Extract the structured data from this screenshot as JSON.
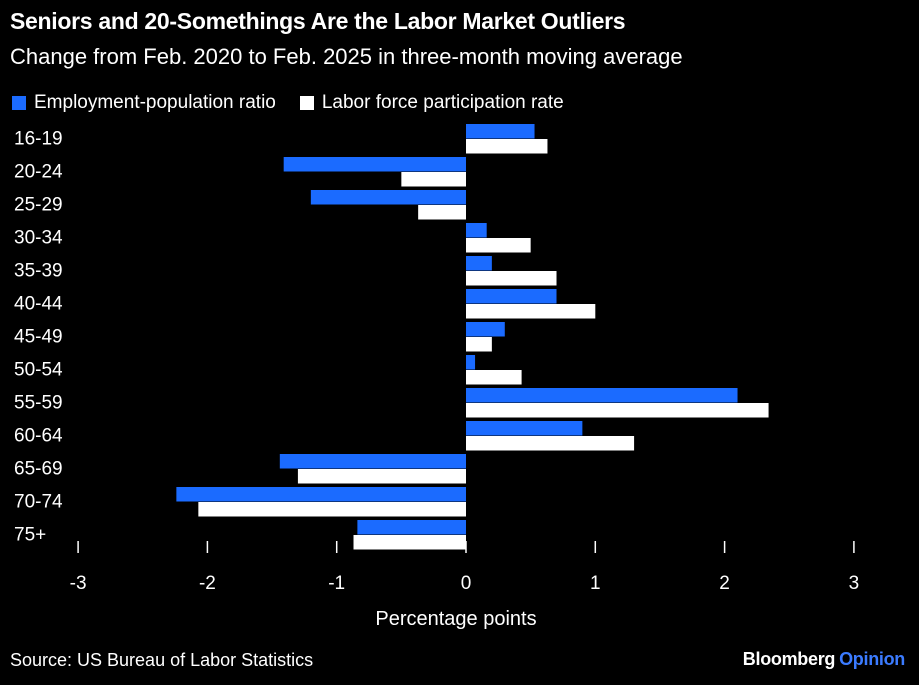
{
  "header": {
    "title": "Seniors and 20-Somethings Are the Labor Market Outliers",
    "subtitle": "Change from Feb. 2020 to Feb. 2025 in three-month moving average"
  },
  "footer": {
    "source": "Source: US Bureau of Labor Statistics",
    "brand_main": "Bloomberg",
    "brand_sub": "Opinion"
  },
  "colors": {
    "background": "#000000",
    "series1": "#1b6bff",
    "series2": "#ffffff",
    "text": "#ffffff"
  },
  "chart_data": {
    "type": "bar",
    "orientation": "horizontal",
    "title": "Seniors and 20-Somethings Are the Labor Market Outliers",
    "subtitle": "Change from Feb. 2020 to Feb. 2025 in three-month moving average",
    "xlabel": "Percentage points",
    "ylabel": "",
    "xlim": [
      -3,
      3
    ],
    "xticks": [
      -3,
      -2,
      -1,
      0,
      1,
      2,
      3
    ],
    "grid": false,
    "legend_position": "top-left",
    "categories": [
      "16-19",
      "20-24",
      "25-29",
      "30-34",
      "35-39",
      "40-44",
      "45-49",
      "50-54",
      "55-59",
      "60-64",
      "65-69",
      "70-74",
      "75+"
    ],
    "series": [
      {
        "name": "Employment-population ratio",
        "color": "#1b6bff",
        "values": [
          0.53,
          -1.41,
          -1.2,
          0.16,
          0.2,
          0.7,
          0.3,
          0.07,
          2.1,
          0.9,
          -1.44,
          -2.24,
          -0.84
        ]
      },
      {
        "name": "Labor force participation rate",
        "color": "#ffffff",
        "values": [
          0.63,
          -0.5,
          -0.37,
          0.5,
          0.7,
          1.0,
          0.2,
          0.43,
          2.34,
          1.3,
          -1.3,
          -2.07,
          -0.87
        ]
      }
    ]
  }
}
